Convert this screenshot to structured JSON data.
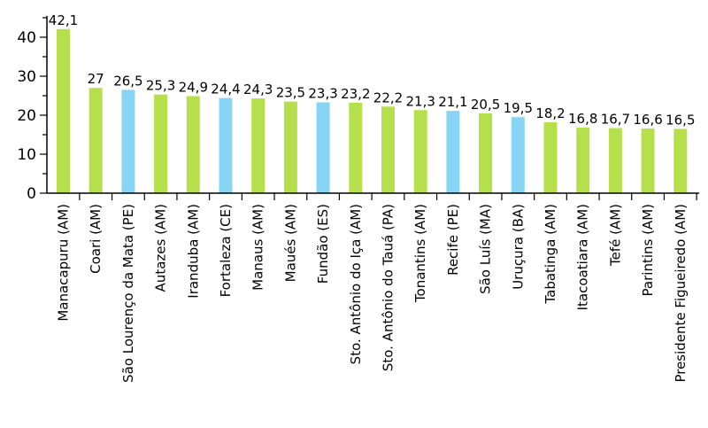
{
  "chart_data": {
    "type": "bar",
    "title": "",
    "xlabel": "",
    "ylabel": "",
    "ylim": [
      0,
      45
    ],
    "yticks": [
      "0",
      "10",
      "20",
      "30",
      "40"
    ],
    "grid": false,
    "legend": "none",
    "colors": {
      "am": "#b5e04b",
      "other": "#88d4f4"
    },
    "categories": [
      "Manacapuru (AM)",
      "Coari (AM)",
      "São Lourenço da Mata (PE)",
      "Autazes (AM)",
      "Iranduba (AM)",
      "Fortaleza (CE)",
      "Manaus (AM)",
      "Maués (AM)",
      "Fundão (ES)",
      "Sto. Antônio do Iça (AM)",
      "Sto. Antônio do Tauá (PA)",
      "Tonantins (AM)",
      "Recife (PE)",
      "São Luís (MA)",
      "Uruçura (BA)",
      "Tabatinga (AM)",
      "Itacoatiara (AM)",
      "Tefé (AM)",
      "Parintins (AM)",
      "Presidente Figueiredo (AM)"
    ],
    "values": [
      42.1,
      27,
      26.5,
      25.3,
      24.9,
      24.4,
      24.3,
      23.5,
      23.3,
      23.2,
      22.2,
      21.3,
      21.1,
      20.5,
      19.5,
      18.2,
      16.8,
      16.7,
      16.6,
      16.5
    ],
    "value_labels": [
      "42,1",
      "27",
      "26,5",
      "25,3",
      "24,9",
      "24,4",
      "24,3",
      "23,5",
      "23,3",
      "23,2",
      "22,2",
      "21,3",
      "21,1",
      "20,5",
      "19,5",
      "18,2",
      "16,8",
      "16,7",
      "16,6",
      "16,5"
    ],
    "bar_color_keys": [
      "am",
      "am",
      "other",
      "am",
      "am",
      "other",
      "am",
      "am",
      "other",
      "am",
      "am",
      "am",
      "other",
      "am",
      "other",
      "am",
      "am",
      "am",
      "am",
      "am"
    ]
  }
}
